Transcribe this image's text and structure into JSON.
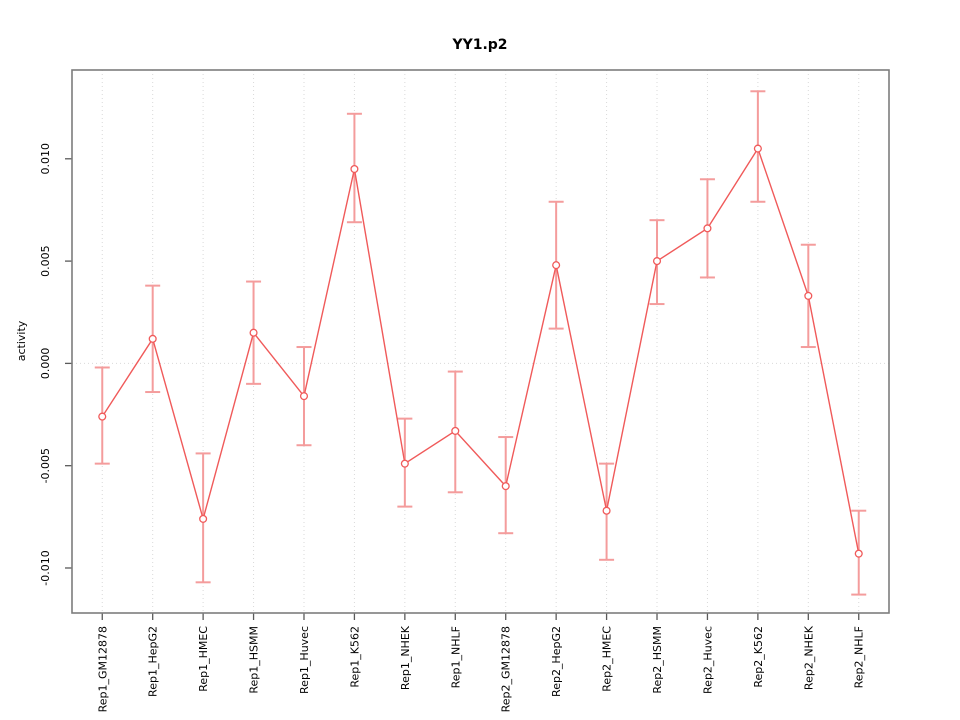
{
  "chart_data": {
    "type": "line",
    "title": "YY1.p2",
    "xlabel": "",
    "ylabel": "activity",
    "legend": "none",
    "grid": "dotted vertical gridline at each category; dotted horizontal line at y=0",
    "categories": [
      "Rep1_GM12878",
      "Rep1_HepG2",
      "Rep1_HMEC",
      "Rep1_HSMM",
      "Rep1_Huvec",
      "Rep1_K562",
      "Rep1_NHEK",
      "Rep1_NHLF",
      "Rep2_GM12878",
      "Rep2_HepG2",
      "Rep2_HMEC",
      "Rep2_HSMM",
      "Rep2_Huvec",
      "Rep2_K562",
      "Rep2_NHEK",
      "Rep2_NHLF"
    ],
    "values": [
      -0.0026,
      0.0012,
      -0.0076,
      0.0015,
      -0.0016,
      0.0095,
      -0.0049,
      -0.0033,
      -0.006,
      0.0048,
      -0.0072,
      0.005,
      0.0066,
      0.0105,
      0.0033,
      -0.0093
    ],
    "error_low": [
      -0.0049,
      -0.0014,
      -0.0107,
      -0.001,
      -0.004,
      0.0069,
      -0.007,
      -0.0063,
      -0.0083,
      0.0017,
      -0.0096,
      0.0029,
      0.0042,
      0.0079,
      0.0008,
      -0.0113
    ],
    "error_high": [
      -0.0002,
      0.0038,
      -0.0044,
      0.004,
      0.0008,
      0.0122,
      -0.0027,
      -0.0004,
      -0.0036,
      0.0079,
      -0.0049,
      0.007,
      0.009,
      0.0133,
      0.0058,
      -0.0072
    ],
    "yticks": {
      "values": [
        -0.01,
        -0.005,
        0.0,
        0.005,
        0.01
      ],
      "labels": [
        "-0.010",
        "-0.005",
        "0.000",
        "0.005",
        "0.010"
      ]
    },
    "ylim": [
      -0.0122,
      0.01434
    ],
    "xlim": [
      0.4,
      16.6
    ],
    "zero_reference_line": 0.0,
    "colors": {
      "line": "#f05a5a",
      "point_stroke": "#f05a5a",
      "point_fill": "#ffffff",
      "error_bar": "#f49c9c",
      "frame": "#7d7d7d",
      "tick": "#5a5a5a",
      "grid": "#d9d9d9",
      "zero_line": "#d9d9d9",
      "text": "#000000",
      "background": "#ffffff"
    }
  }
}
